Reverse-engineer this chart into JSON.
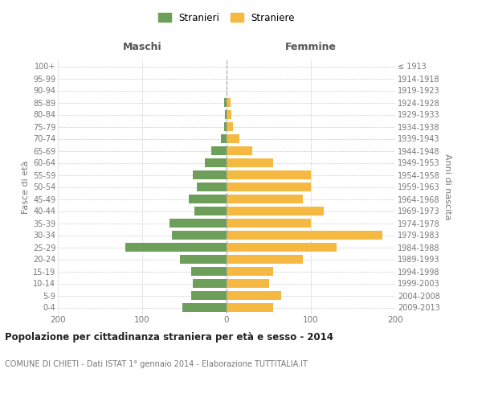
{
  "age_groups": [
    "0-4",
    "5-9",
    "10-14",
    "15-19",
    "20-24",
    "25-29",
    "30-34",
    "35-39",
    "40-44",
    "45-49",
    "50-54",
    "55-59",
    "60-64",
    "65-69",
    "70-74",
    "75-79",
    "80-84",
    "85-89",
    "90-94",
    "95-99",
    "100+"
  ],
  "birth_years": [
    "2009-2013",
    "2004-2008",
    "1999-2003",
    "1994-1998",
    "1989-1993",
    "1984-1988",
    "1979-1983",
    "1974-1978",
    "1969-1973",
    "1964-1968",
    "1959-1963",
    "1954-1958",
    "1949-1953",
    "1944-1948",
    "1939-1943",
    "1934-1938",
    "1929-1933",
    "1924-1928",
    "1919-1923",
    "1914-1918",
    "≤ 1913"
  ],
  "males": [
    52,
    42,
    40,
    42,
    55,
    120,
    65,
    68,
    38,
    45,
    35,
    40,
    26,
    18,
    7,
    3,
    2,
    3,
    0,
    0,
    0
  ],
  "females": [
    55,
    65,
    50,
    55,
    90,
    130,
    185,
    100,
    115,
    90,
    100,
    100,
    55,
    30,
    15,
    8,
    6,
    5,
    0,
    0,
    0
  ],
  "male_color": "#6d9e5a",
  "female_color": "#f5b942",
  "background_color": "#ffffff",
  "grid_color": "#cccccc",
  "title": "Popolazione per cittadinanza straniera per età e sesso - 2014",
  "subtitle": "COMUNE DI CHIETI - Dati ISTAT 1° gennaio 2014 - Elaborazione TUTTITALIA.IT",
  "ylabel_left": "Fasce di età",
  "ylabel_right": "Anni di nascita",
  "header_left": "Maschi",
  "header_right": "Femmine",
  "legend_male": "Stranieri",
  "legend_female": "Straniere",
  "xlim": 200,
  "bar_height": 0.72
}
